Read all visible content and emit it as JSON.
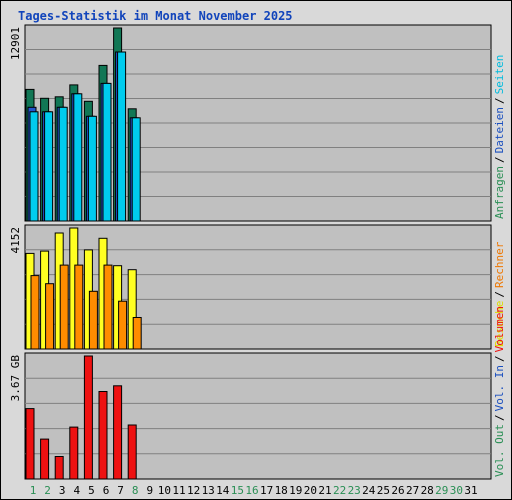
{
  "chart_data": {
    "type": "bar",
    "title": "Tages-Statistik im Monat November 2025",
    "categories": [
      "1",
      "2",
      "3",
      "4",
      "5",
      "6",
      "7",
      "8",
      "9",
      "10",
      "11",
      "12",
      "13",
      "14",
      "15",
      "16",
      "17",
      "18",
      "19",
      "20",
      "21",
      "22",
      "23",
      "24",
      "25",
      "26",
      "27",
      "28",
      "29",
      "30",
      "31"
    ],
    "weekend_days": [
      "1",
      "2",
      "8",
      "15",
      "16",
      "22",
      "23",
      "29",
      "30"
    ],
    "colors": {
      "title": "#1144bb",
      "background": "#c0c0c0",
      "grid": "#808080",
      "weekday_label": "#000000",
      "weekend_label": "#2a8f55"
    },
    "panels": [
      {
        "id": "requests",
        "max_label": "12901",
        "ylim": [
          0,
          12901
        ],
        "legend": [
          {
            "text": "Anfragen",
            "color": "#2a8f55"
          },
          {
            "text": "/",
            "color": "#000000"
          },
          {
            "text": "Dateien",
            "color": "#1a4fbf"
          },
          {
            "text": "/",
            "color": "#000000"
          },
          {
            "text": "Seiten",
            "color": "#00bbdd"
          }
        ],
        "series": [
          {
            "name": "Anfragen",
            "color": "#117755",
            "values": [
              8800,
              8200,
              8300,
              9100,
              8000,
              10400,
              12901,
              7500
            ]
          },
          {
            "name": "Dateien",
            "color": "#2255cc",
            "values": [
              7600,
              7300,
              7600,
              8500,
              7000,
              9200,
              11300,
              6900
            ]
          },
          {
            "name": "Seiten",
            "color": "#00ccee",
            "values": [
              7300,
              7300,
              7600,
              8500,
              7000,
              9200,
              11300,
              6900
            ]
          }
        ]
      },
      {
        "id": "visits",
        "max_label": "4152",
        "ylim": [
          0,
          4152
        ],
        "legend": [
          {
            "text": "Besuche",
            "color": "#dddd00"
          },
          {
            "text": "/",
            "color": "#000000"
          },
          {
            "text": "Rechner",
            "color": "#ee7700"
          }
        ],
        "series": [
          {
            "name": "Besuche",
            "color": "#ffff22",
            "values": [
              3280,
              3360,
              3980,
              4152,
              3400,
              3800,
              2860,
              2720
            ]
          },
          {
            "name": "Rechner",
            "color": "#ff8c00",
            "values": [
              2520,
              2240,
              2880,
              2880,
              1980,
              2880,
              1640,
              1080
            ]
          }
        ]
      },
      {
        "id": "volume",
        "max_label": "3.67 GB",
        "ylim": [
          0,
          3.67
        ],
        "legend": [
          {
            "text": "Vol. Out",
            "color": "#2a8f55"
          },
          {
            "text": "/",
            "color": "#000000"
          },
          {
            "text": "Vol. In",
            "color": "#1a4fbf"
          },
          {
            "text": "/",
            "color": "#000000"
          },
          {
            "text": "Volumen",
            "color": "#ee1111"
          }
        ],
        "series": [
          {
            "name": "Volumen",
            "color": "#ee1111",
            "values": [
              2.1,
              1.19,
              0.67,
              1.55,
              3.67,
              2.61,
              2.78,
              1.61
            ]
          }
        ]
      }
    ]
  }
}
